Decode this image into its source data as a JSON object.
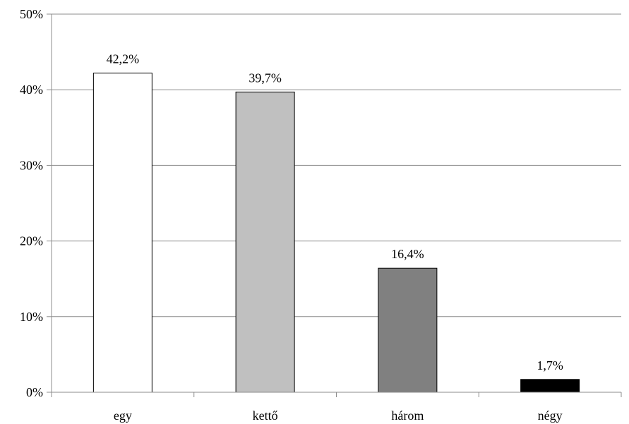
{
  "chart_data": {
    "type": "bar",
    "categories": [
      "egy",
      "kettő",
      "három",
      "négy"
    ],
    "values": [
      42.2,
      39.7,
      16.4,
      1.7
    ],
    "data_labels": [
      "42,2%",
      "39,7%",
      "16,4%",
      "1,7%"
    ],
    "bar_colors": [
      "#ffffff",
      "#c0c0c0",
      "#808080",
      "#000000"
    ],
    "ylim": [
      0,
      50
    ],
    "yticks": [
      0,
      10,
      20,
      30,
      40,
      50
    ],
    "ytick_labels": [
      "0%",
      "10%",
      "20%",
      "30%",
      "40%",
      "50%"
    ],
    "grid": true,
    "legend": "none",
    "title": "",
    "xlabel": "",
    "ylabel": ""
  }
}
